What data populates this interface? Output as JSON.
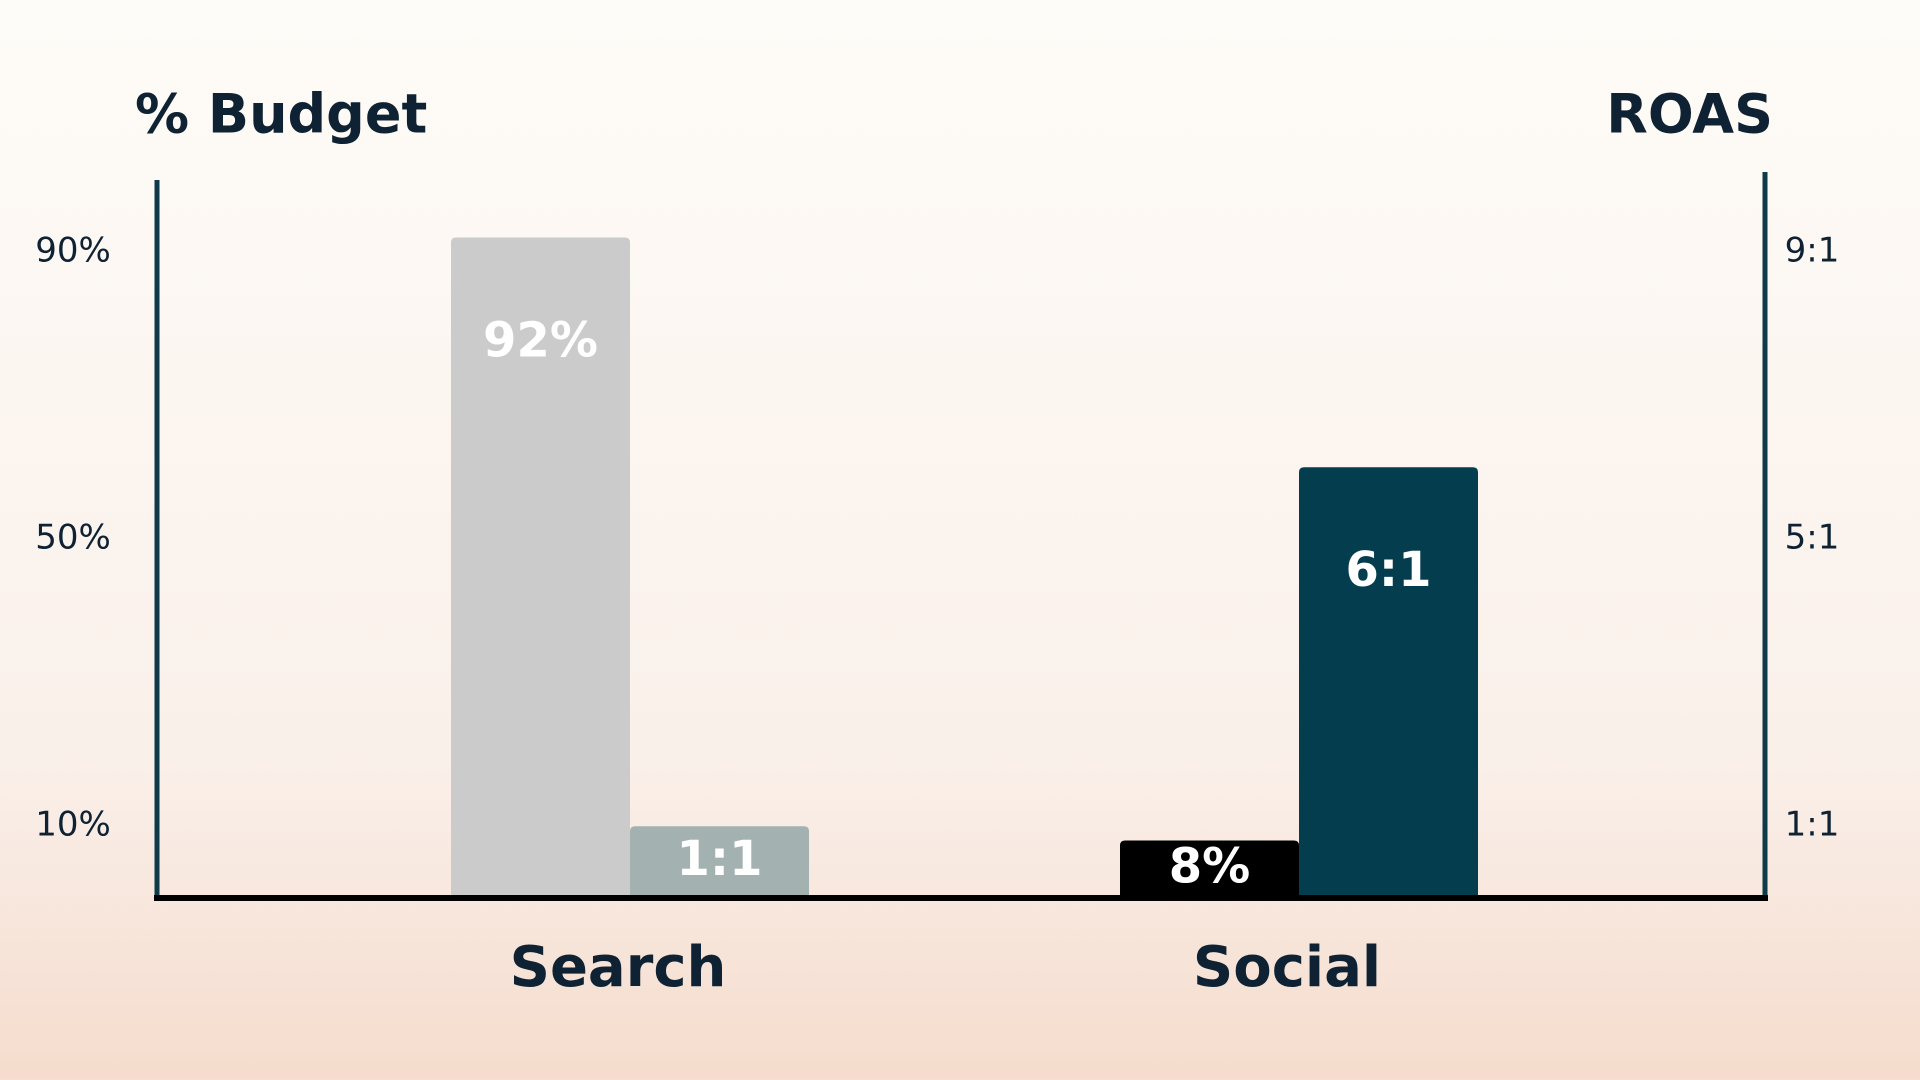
{
  "chart_data": {
    "type": "bar",
    "y_label": "% Budget",
    "y2_label": "ROAS",
    "categories": [
      "Search",
      "Social"
    ],
    "series": [
      {
        "axis": "y",
        "colors": [
          "#cbcbcb",
          "#000000"
        ],
        "values": [
          92,
          8
        ],
        "value_labels": [
          "92%",
          "8%"
        ]
      },
      {
        "axis": "y2",
        "colors": [
          "#a3b1b1",
          "#043d4e"
        ],
        "values": [
          1,
          6
        ],
        "value_labels": [
          "1:1",
          "6:1"
        ]
      }
    ],
    "ylim": [
      0,
      100
    ],
    "yticks": [
      {
        "value": 10,
        "label": "10%"
      },
      {
        "value": 50,
        "label": "50%"
      },
      {
        "value": 90,
        "label": "90%"
      }
    ],
    "y2lim": [
      0,
      10
    ],
    "y2ticks": [
      {
        "value": 1,
        "label": "1:1"
      },
      {
        "value": 5,
        "label": "5:1"
      },
      {
        "value": 9,
        "label": "9:1"
      }
    ],
    "grid": false
  }
}
